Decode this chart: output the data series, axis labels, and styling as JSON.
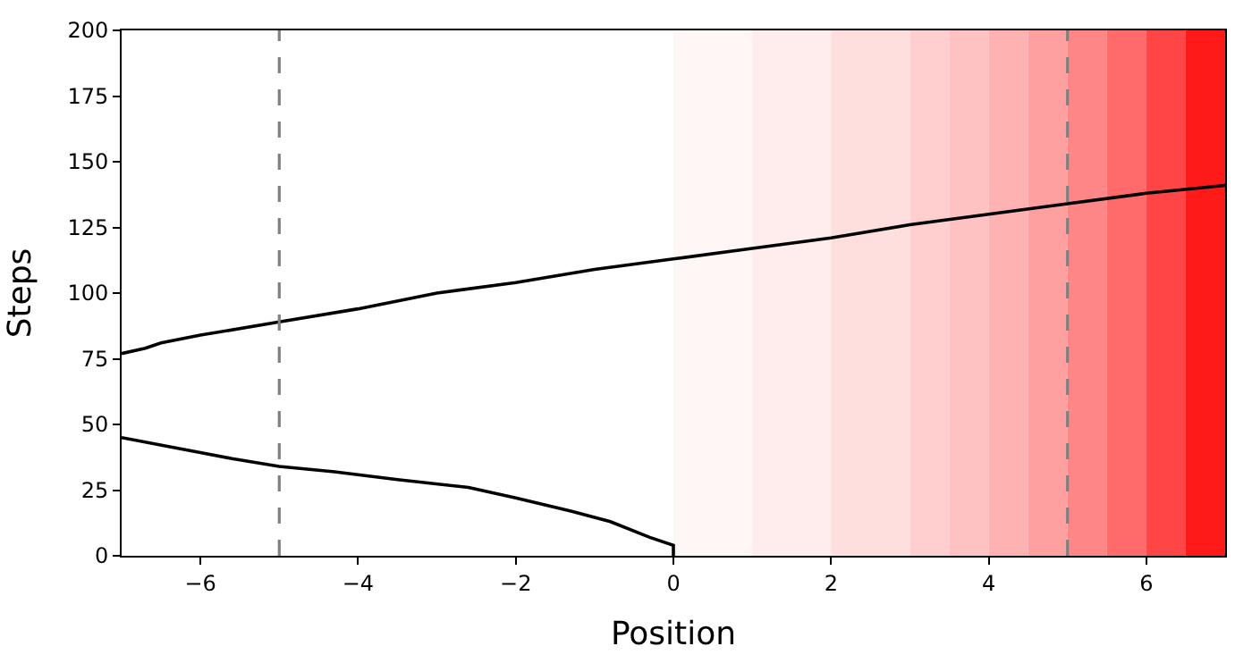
{
  "chart_data": {
    "type": "line",
    "xlabel": "Position",
    "ylabel": "Steps",
    "xlim": [
      -7,
      7
    ],
    "ylim": [
      0,
      200
    ],
    "xticks": [
      {
        "value": -6,
        "label": "−6"
      },
      {
        "value": -4,
        "label": "−4"
      },
      {
        "value": -2,
        "label": "−2"
      },
      0,
      2,
      4,
      6
    ],
    "yticks": [
      0,
      25,
      50,
      75,
      100,
      125,
      150,
      175,
      200
    ],
    "grid": false,
    "marker": "none",
    "line_style": "solid",
    "series": [
      {
        "color": "#000000",
        "x": [
          0,
          0,
          -0.3,
          -0.8,
          -1.3,
          -2,
          -2.6,
          -3.5,
          -4.3,
          -5,
          -5.6,
          -6.3,
          -7
        ],
        "values": [
          0,
          4,
          7,
          13,
          17,
          22,
          26,
          29,
          32,
          34,
          37,
          41,
          45
        ]
      },
      {
        "color": "#000000",
        "x": [
          -7,
          -6.7,
          -6.5,
          -6,
          -5,
          -4,
          -3,
          -2,
          -1,
          0,
          1,
          2,
          3,
          4,
          5,
          6,
          7
        ],
        "values": [
          77,
          79,
          81,
          84,
          89,
          94,
          100,
          104,
          109,
          113,
          117,
          121,
          126,
          130,
          134,
          138,
          141
        ]
      }
    ],
    "ref_lines": [
      {
        "axis": "x",
        "value": -5,
        "color": "#808080",
        "line_style": "dashed"
      },
      {
        "axis": "x",
        "value": 5,
        "color": "#808080",
        "line_style": "dashed"
      }
    ],
    "bands": [
      {
        "axis": "x",
        "from": 0,
        "to": 1,
        "color": "#fff6f6"
      },
      {
        "axis": "x",
        "from": 1,
        "to": 2,
        "color": "#ffeded"
      },
      {
        "axis": "x",
        "from": 2,
        "to": 3,
        "color": "#ffdede"
      },
      {
        "axis": "x",
        "from": 3,
        "to": 3.5,
        "color": "#ffcfcf"
      },
      {
        "axis": "x",
        "from": 3.5,
        "to": 4,
        "color": "#ffc2c2"
      },
      {
        "axis": "x",
        "from": 4,
        "to": 4.5,
        "color": "#ffb2b2"
      },
      {
        "axis": "x",
        "from": 4.5,
        "to": 5,
        "color": "#ffa0a0"
      },
      {
        "axis": "x",
        "from": 5,
        "to": 5.5,
        "color": "#ff8686"
      },
      {
        "axis": "x",
        "from": 5.5,
        "to": 6,
        "color": "#ff6a6a"
      },
      {
        "axis": "x",
        "from": 6,
        "to": 6.5,
        "color": "#ff4545"
      },
      {
        "axis": "x",
        "from": 6.5,
        "to": 7,
        "color": "#ff1a1a"
      }
    ]
  }
}
